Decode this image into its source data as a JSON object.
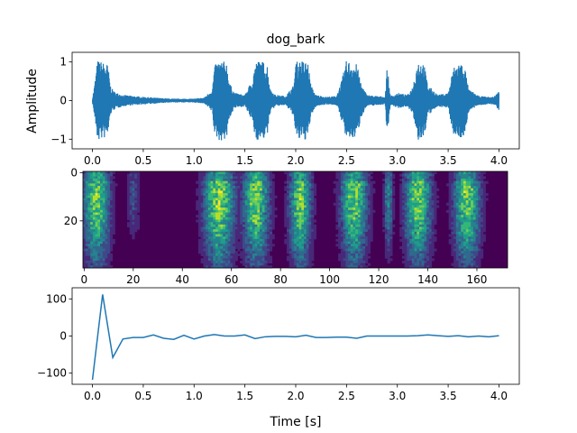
{
  "figure": {
    "title": "dog_bark"
  },
  "chart_data": [
    {
      "type": "line",
      "panel": "waveform",
      "title": "dog_bark",
      "xlabel": "",
      "ylabel": "Amplitude",
      "xlim": [
        -0.2,
        4.2
      ],
      "ylim": [
        -1.25,
        1.25
      ],
      "xticks": [
        0.0,
        0.5,
        1.0,
        1.5,
        2.0,
        2.5,
        3.0,
        3.5,
        4.0
      ],
      "xtick_labels": [
        "0.0",
        "0.5",
        "1.0",
        "1.5",
        "2.0",
        "2.5",
        "3.0",
        "3.5",
        "4.0"
      ],
      "yticks": [
        1,
        0,
        -1
      ],
      "ytick_labels": [
        "1",
        "0",
        "−1"
      ],
      "color": "#1f77b4",
      "envelope": {
        "t": [
          0.0,
          0.02,
          0.05,
          0.1,
          0.15,
          0.18,
          0.22,
          0.3,
          0.4,
          0.5,
          0.6,
          0.7,
          0.8,
          0.9,
          1.0,
          1.1,
          1.18,
          1.2,
          1.25,
          1.32,
          1.35,
          1.4,
          1.5,
          1.58,
          1.6,
          1.65,
          1.72,
          1.75,
          1.8,
          1.9,
          1.98,
          2.0,
          2.05,
          2.12,
          2.15,
          2.2,
          2.3,
          2.4,
          2.45,
          2.5,
          2.55,
          2.6,
          2.65,
          2.7,
          2.8,
          2.88,
          2.9,
          2.93,
          2.95,
          3.0,
          3.1,
          3.15,
          3.2,
          3.26,
          3.3,
          3.4,
          3.5,
          3.55,
          3.6,
          3.66,
          3.7,
          3.8,
          3.9,
          3.95,
          4.0
        ],
        "amp": [
          0.05,
          0.4,
          1.05,
          1.0,
          0.95,
          0.35,
          0.22,
          0.15,
          0.12,
          0.1,
          0.08,
          0.06,
          0.05,
          0.05,
          0.05,
          0.08,
          0.3,
          0.9,
          1.05,
          1.0,
          0.45,
          0.2,
          0.15,
          0.6,
          1.0,
          1.05,
          0.95,
          0.3,
          0.15,
          0.12,
          0.4,
          1.0,
          1.05,
          1.0,
          0.4,
          0.15,
          0.1,
          0.12,
          0.5,
          1.05,
          1.0,
          0.95,
          0.4,
          0.15,
          0.12,
          0.1,
          0.9,
          0.15,
          0.12,
          0.2,
          0.15,
          0.35,
          1.05,
          1.0,
          0.4,
          0.15,
          0.2,
          0.85,
          1.0,
          0.95,
          0.3,
          0.12,
          0.1,
          0.1,
          0.25
        ]
      }
    },
    {
      "type": "heatmap",
      "panel": "spectrogram",
      "xlim": [
        -0.5,
        172.5
      ],
      "ylim": [
        39.5,
        -0.5
      ],
      "n_frames": 173,
      "n_bins": 40,
      "xticks": [
        0,
        20,
        40,
        60,
        80,
        100,
        120,
        140,
        160
      ],
      "xtick_labels": [
        "0",
        "20",
        "40",
        "60",
        "80",
        "100",
        "120",
        "140",
        "160"
      ],
      "yticks": [
        0,
        20
      ],
      "ytick_labels": [
        "0",
        "20"
      ],
      "colormap": [
        "#440154",
        "#482878",
        "#3e4989",
        "#31688e",
        "#26828e",
        "#1f9e89",
        "#35b779",
        "#6ece58",
        "#b5de2b",
        "#fde725"
      ],
      "events": [
        {
          "center": 5,
          "width": 6,
          "strength": 0.95
        },
        {
          "center": 20,
          "width": 3,
          "strength": 0.35
        },
        {
          "center": 55,
          "width": 7,
          "strength": 1.0
        },
        {
          "center": 70,
          "width": 6,
          "strength": 0.95
        },
        {
          "center": 88,
          "width": 5,
          "strength": 0.95
        },
        {
          "center": 110,
          "width": 6,
          "strength": 0.95
        },
        {
          "center": 124,
          "width": 2,
          "strength": 0.6
        },
        {
          "center": 136,
          "width": 6,
          "strength": 0.95
        },
        {
          "center": 156,
          "width": 6,
          "strength": 0.95
        }
      ]
    },
    {
      "type": "line",
      "panel": "derivative",
      "xlabel": "Time [s]",
      "ylabel": "",
      "xlim": [
        -0.2,
        4.2
      ],
      "ylim": [
        -130,
        130
      ],
      "xticks": [
        0.0,
        0.5,
        1.0,
        1.5,
        2.0,
        2.5,
        3.0,
        3.5,
        4.0
      ],
      "xtick_labels": [
        "0.0",
        "0.5",
        "1.0",
        "1.5",
        "2.0",
        "2.5",
        "3.0",
        "3.5",
        "4.0"
      ],
      "yticks": [
        100,
        0,
        -100
      ],
      "ytick_labels": [
        "100",
        "0",
        "−100"
      ],
      "color": "#1f77b4",
      "x": [
        0.0,
        0.1,
        0.2,
        0.3,
        0.4,
        0.5,
        0.6,
        0.7,
        0.8,
        0.9,
        1.0,
        1.1,
        1.2,
        1.3,
        1.4,
        1.5,
        1.6,
        1.7,
        1.8,
        1.9,
        2.0,
        2.1,
        2.2,
        2.3,
        2.4,
        2.5,
        2.6,
        2.7,
        2.8,
        2.9,
        3.0,
        3.1,
        3.2,
        3.3,
        3.4,
        3.5,
        3.6,
        3.7,
        3.8,
        3.9,
        4.0
      ],
      "y": [
        -118,
        112,
        -58,
        -8,
        -4,
        -4,
        3,
        -6,
        -9,
        2,
        -8,
        0,
        4,
        0,
        0,
        3,
        -7,
        -2,
        -1,
        -1,
        -2,
        2,
        -4,
        -4,
        -3,
        -3,
        -6,
        0,
        0,
        0,
        0,
        0,
        1,
        3,
        1,
        -1,
        1,
        -2,
        0,
        -2,
        1
      ]
    }
  ]
}
